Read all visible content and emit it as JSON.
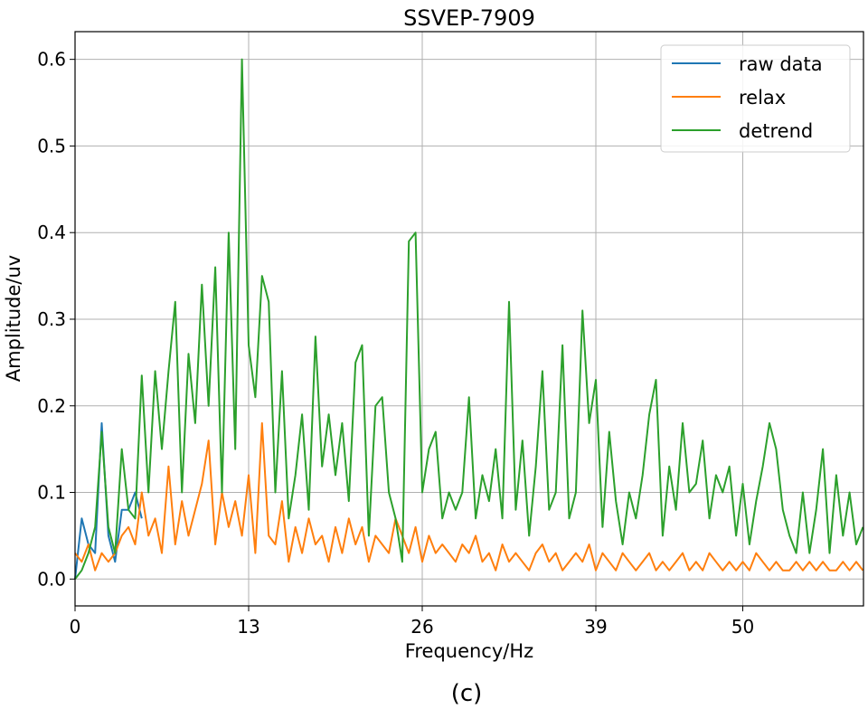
{
  "chart_data": {
    "type": "line",
    "title": "SSVEP-7909",
    "xlabel": "Frequency/Hz",
    "ylabel": "Amplitude/uv",
    "caption": "(c)",
    "xlim": [
      0,
      59.04
    ],
    "ylim": [
      -0.031,
      0.632
    ],
    "xticks": [
      0,
      13,
      26,
      39,
      50
    ],
    "yticks": [
      0.0,
      0.1,
      0.2,
      0.3,
      0.4,
      0.5,
      0.6
    ],
    "ytick_labels": [
      "0.0",
      "0.1",
      "0.2",
      "0.3",
      "0.4",
      "0.5",
      "0.6"
    ],
    "grid": true,
    "legend_position": "top-right",
    "x_step": 0.5,
    "series": [
      {
        "name": "raw data",
        "color": "#1f77b4",
        "values": [
          0.0,
          0.07,
          0.04,
          0.03,
          0.18,
          0.05,
          0.02,
          0.08,
          0.08,
          0.1,
          0.07
        ]
      },
      {
        "name": "relax",
        "color": "#ff7f0e",
        "values": [
          0.03,
          0.02,
          0.04,
          0.01,
          0.03,
          0.02,
          0.03,
          0.05,
          0.06,
          0.04,
          0.1,
          0.05,
          0.07,
          0.03,
          0.13,
          0.04,
          0.09,
          0.05,
          0.08,
          0.11,
          0.16,
          0.04,
          0.1,
          0.06,
          0.09,
          0.05,
          0.12,
          0.03,
          0.18,
          0.05,
          0.04,
          0.09,
          0.02,
          0.06,
          0.03,
          0.07,
          0.04,
          0.05,
          0.02,
          0.06,
          0.03,
          0.07,
          0.04,
          0.06,
          0.02,
          0.05,
          0.04,
          0.03,
          0.07,
          0.05,
          0.03,
          0.06,
          0.02,
          0.05,
          0.03,
          0.04,
          0.03,
          0.02,
          0.04,
          0.03,
          0.05,
          0.02,
          0.03,
          0.01,
          0.04,
          0.02,
          0.03,
          0.02,
          0.01,
          0.03,
          0.04,
          0.02,
          0.03,
          0.01,
          0.02,
          0.03,
          0.02,
          0.04,
          0.01,
          0.03,
          0.02,
          0.01,
          0.03,
          0.02,
          0.01,
          0.02,
          0.03,
          0.01,
          0.02,
          0.01,
          0.02,
          0.03,
          0.01,
          0.02,
          0.01,
          0.03,
          0.02,
          0.01,
          0.02,
          0.01,
          0.02,
          0.01,
          0.03,
          0.02,
          0.01,
          0.02,
          0.01,
          0.01,
          0.02,
          0.01,
          0.02,
          0.01,
          0.02,
          0.01,
          0.01,
          0.02,
          0.01,
          0.02,
          0.01
        ]
      },
      {
        "name": "detrend",
        "color": "#2ca02c",
        "values": [
          0.0,
          0.01,
          0.03,
          0.06,
          0.17,
          0.06,
          0.03,
          0.15,
          0.08,
          0.07,
          0.235,
          0.1,
          0.24,
          0.15,
          0.24,
          0.32,
          0.1,
          0.26,
          0.18,
          0.34,
          0.2,
          0.36,
          0.1,
          0.4,
          0.15,
          0.6,
          0.27,
          0.21,
          0.35,
          0.32,
          0.1,
          0.24,
          0.07,
          0.12,
          0.19,
          0.08,
          0.28,
          0.13,
          0.19,
          0.12,
          0.18,
          0.09,
          0.25,
          0.27,
          0.05,
          0.2,
          0.21,
          0.1,
          0.07,
          0.02,
          0.39,
          0.4,
          0.1,
          0.15,
          0.17,
          0.07,
          0.1,
          0.08,
          0.1,
          0.21,
          0.07,
          0.12,
          0.09,
          0.15,
          0.07,
          0.32,
          0.08,
          0.16,
          0.05,
          0.13,
          0.24,
          0.08,
          0.1,
          0.27,
          0.07,
          0.1,
          0.31,
          0.18,
          0.23,
          0.06,
          0.17,
          0.09,
          0.04,
          0.1,
          0.07,
          0.12,
          0.19,
          0.23,
          0.05,
          0.13,
          0.08,
          0.18,
          0.1,
          0.11,
          0.16,
          0.07,
          0.12,
          0.1,
          0.13,
          0.05,
          0.11,
          0.04,
          0.09,
          0.13,
          0.18,
          0.15,
          0.08,
          0.05,
          0.03,
          0.1,
          0.03,
          0.08,
          0.15,
          0.03,
          0.12,
          0.05,
          0.1,
          0.04,
          0.06
        ]
      }
    ]
  }
}
